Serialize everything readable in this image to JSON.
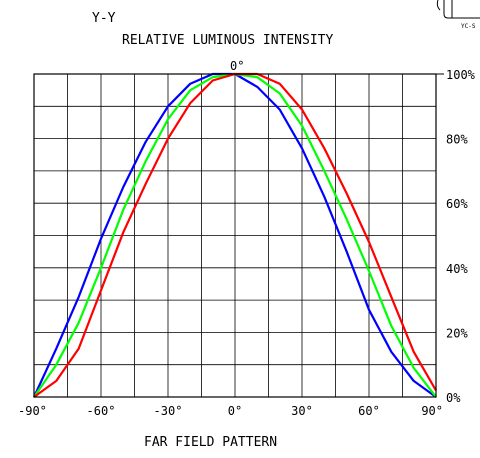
{
  "chart_data": {
    "type": "line",
    "header_label": "Y-Y",
    "title": "RELATIVE LUMINOUS INTENSITY",
    "footer": "FAR FIELD PATTERN",
    "corner_label": "YC-S",
    "center_label": "0°",
    "xlim": [
      -90,
      90
    ],
    "ylim": [
      0,
      100
    ],
    "x_ticks": [
      -90,
      -60,
      -30,
      0,
      30,
      60,
      90
    ],
    "x_tick_labels": [
      "-90°",
      "-60°",
      "-30°",
      "0°",
      "30°",
      "60°",
      "90°"
    ],
    "y_ticks": [
      0,
      20,
      40,
      60,
      80,
      100
    ],
    "y_tick_labels": [
      "0%",
      "20%",
      "40%",
      "60%",
      "80%",
      "100%"
    ],
    "grid": true,
    "series": [
      {
        "color": "#0000ff",
        "x": [
          -90,
          -80,
          -70,
          -60,
          -50,
          -40,
          -30,
          -20,
          -10,
          0,
          10,
          20,
          30,
          40,
          50,
          60,
          70,
          80,
          90
        ],
        "values": [
          0,
          15,
          31,
          49,
          65,
          79,
          90,
          97,
          100,
          100,
          96,
          89,
          77,
          62,
          45,
          27,
          14,
          5,
          0
        ]
      },
      {
        "color": "#00ff00",
        "x": [
          -90,
          -80,
          -70,
          -60,
          -50,
          -40,
          -30,
          -20,
          -10,
          0,
          10,
          20,
          30,
          40,
          50,
          60,
          70,
          80,
          90
        ],
        "values": [
          0,
          10,
          23,
          40,
          58,
          73,
          86,
          95,
          99,
          100,
          99,
          94,
          84,
          70,
          55,
          39,
          22,
          9,
          0
        ]
      },
      {
        "color": "#ff0000",
        "x": [
          -90,
          -80,
          -70,
          -60,
          -50,
          -40,
          -30,
          -20,
          -10,
          0,
          10,
          20,
          30,
          40,
          50,
          60,
          70,
          80,
          90
        ],
        "values": [
          0,
          5,
          15,
          33,
          51,
          66,
          80,
          91,
          98,
          100,
          100,
          97,
          89,
          77,
          63,
          48,
          31,
          14,
          2
        ]
      }
    ]
  }
}
